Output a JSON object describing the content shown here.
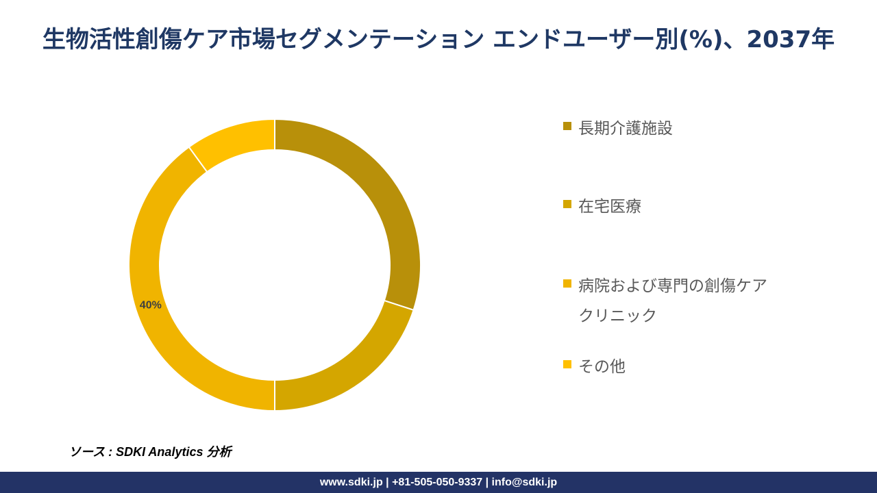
{
  "header": {
    "title": "生物活性創傷ケア市場セグメンテーション エンドユーザー別(%)、2037年"
  },
  "chart_data": {
    "type": "pie",
    "donut": true,
    "categories": [
      "長期介護施設",
      "在宅医療",
      "病院および専門の創傷ケアクリニック",
      "その他"
    ],
    "values": [
      30,
      20,
      40,
      10
    ],
    "colors": [
      "#b8900a",
      "#d4a600",
      "#f0b400",
      "#ffc000"
    ],
    "data_labels": [
      "",
      "",
      "40%",
      ""
    ],
    "legend_position": "right"
  },
  "legend": {
    "items": [
      {
        "label": "長期介護施設",
        "color": "#b8900a"
      },
      {
        "label": "在宅医療",
        "color": "#d4a600"
      },
      {
        "label": "病院および専門の創傷ケアクリニック",
        "color": "#f0b400"
      },
      {
        "label": "その他",
        "color": "#ffc000"
      }
    ]
  },
  "source": {
    "text": "ソース : SDKI Analytics 分析"
  },
  "footer": {
    "text": "www.sdki.jp | +81-505-050-9337 | info@sdki.jp"
  }
}
